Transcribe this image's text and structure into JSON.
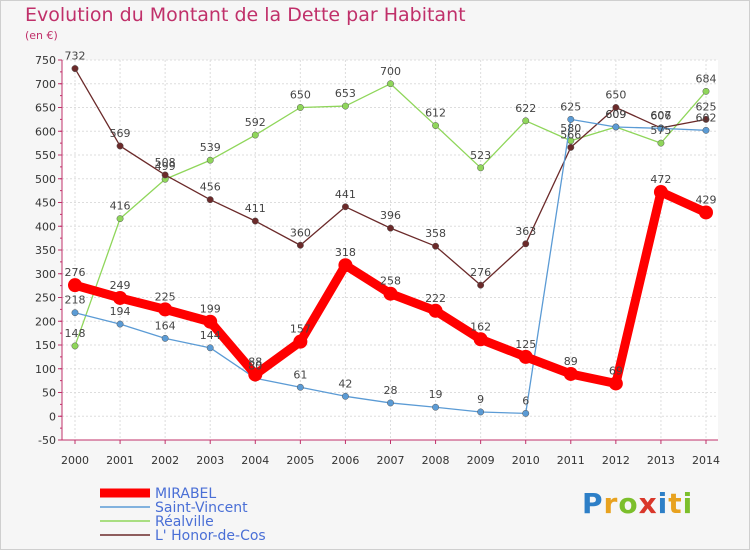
{
  "header": {
    "title": "Evolution du Montant de la Dette par Habitant",
    "unit": "(en €)"
  },
  "logo": {
    "letters": [
      "P",
      "r",
      "o",
      "x",
      "i",
      "t",
      "i"
    ],
    "colors": [
      "#2d7fc7",
      "#e8a21f",
      "#7cbf2b",
      "#d9372a",
      "#2d7fc7",
      "#e8a21f",
      "#7cbf2b"
    ]
  },
  "chart_data": {
    "type": "line",
    "title": "Evolution du Montant de la Dette par Habitant",
    "ylabel": "(en €)",
    "xlabel": "",
    "x": [
      "2000",
      "2001",
      "2002",
      "2003",
      "2004",
      "2005",
      "2006",
      "2007",
      "2008",
      "2009",
      "2010",
      "2011",
      "2012",
      "2013",
      "2014"
    ],
    "ylim": [
      -50,
      750
    ],
    "yticks": [
      -50,
      0,
      50,
      100,
      150,
      200,
      250,
      300,
      350,
      400,
      450,
      500,
      550,
      600,
      650,
      700,
      750
    ],
    "grid": true,
    "legend_position": "bottom-left",
    "series": [
      {
        "name": "MIRABEL",
        "color": "#ff0000",
        "values": [
          276,
          249,
          225,
          199,
          88,
          157,
          318,
          258,
          222,
          162,
          125,
          89,
          69,
          472,
          429
        ]
      },
      {
        "name": "Saint-Vincent",
        "color": "#5b9bd5",
        "values": [
          218,
          194,
          164,
          144,
          80,
          61,
          42,
          28,
          19,
          9,
          6,
          625,
          609,
          606,
          602
        ]
      },
      {
        "name": "Réalville",
        "color": "#8fd65a",
        "values": [
          148,
          416,
          499,
          539,
          592,
          650,
          653,
          700,
          612,
          523,
          622,
          580,
          609,
          575,
          684
        ]
      },
      {
        "name": "L' Honor-de-Cos",
        "color": "#6b2a2a",
        "values": [
          732,
          569,
          508,
          456,
          411,
          360,
          441,
          396,
          358,
          276,
          363,
          566,
          650,
          607,
          625
        ]
      }
    ],
    "labels": [
      [
        "276",
        "249",
        "225",
        "199",
        "88",
        "157",
        "318",
        "258",
        "222",
        "162",
        "125",
        "89",
        "69",
        "472",
        "429"
      ],
      [
        "218",
        "194",
        "164",
        "144",
        "80",
        "61",
        "42",
        "28",
        "19",
        "9",
        "6",
        "625",
        "609",
        "606",
        "602"
      ],
      [
        "148",
        "416",
        "499",
        "539",
        "592",
        "650",
        "653",
        "700",
        "612",
        "523",
        "622",
        "580",
        "609",
        "575",
        "684"
      ],
      [
        "732",
        "569",
        "508",
        "456",
        "411",
        "360",
        "441",
        "396",
        "358",
        "276",
        "363",
        "566",
        "650",
        "607",
        "625"
      ]
    ]
  }
}
